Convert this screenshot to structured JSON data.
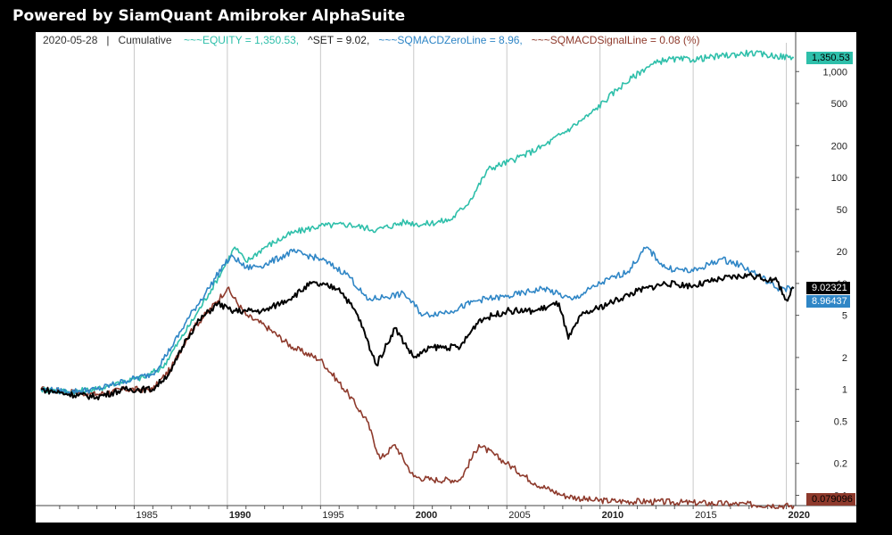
{
  "banner": {
    "title": "Powered by SiamQuant Amibroker AlphaSuite"
  },
  "legend": {
    "date": "2020-05-28",
    "sep": "|",
    "mode": "Cumulative",
    "equity": "~~~EQUITY = 1,350.53,",
    "set": "^SET = 9.02,",
    "zero": "~~~SQMACDZeroLine = 8.96,",
    "signal": "~~~SQMACDSignalLine = 0.08 (%)"
  },
  "tags": {
    "equity": "1,350.53",
    "set": "9.02321",
    "zero": "8.96437",
    "signal": "0.079096"
  },
  "colors": {
    "equity": "#2ebfaa",
    "set": "#000000",
    "zero": "#2f86c6",
    "signal": "#8e3a2c",
    "grid": "#c8c8c8"
  },
  "chart_data": {
    "type": "line",
    "yscale": "log",
    "ylim": [
      0.08,
      1600
    ],
    "xlim": [
      1980.0,
      2020.5
    ],
    "x_ticks": [
      "1985",
      "1990",
      "1995",
      "2000",
      "2005",
      "2010",
      "2015",
      "2020"
    ],
    "y_ticks": [
      "1,000",
      "500",
      "200",
      "100",
      "50",
      "20",
      "10",
      "5",
      "2",
      "1",
      "0.5",
      "0.2",
      "0.1"
    ],
    "series": [
      {
        "name": "~~~EQUITY",
        "key": "equity",
        "x": [
          1980.0,
          1981.5,
          1983.0,
          1984.0,
          1985.5,
          1986.5,
          1987.5,
          1988.3,
          1989.0,
          1989.8,
          1990.4,
          1991.0,
          1992.0,
          1993.5,
          1995.0,
          1996.5,
          1998.0,
          1999.5,
          2000.5,
          2002.0,
          2003.0,
          2004.0,
          2005.5,
          2007.0,
          2008.5,
          2009.5,
          2011.0,
          2012.5,
          2013.5,
          2015.0,
          2016.5,
          2018.0,
          2019.5,
          2020.4
        ],
        "y": [
          1.0,
          0.95,
          1.0,
          1.15,
          1.3,
          1.6,
          3.0,
          5.0,
          8.0,
          14.0,
          22.0,
          16.0,
          22.0,
          30.0,
          35.0,
          36.0,
          32.0,
          38.0,
          36.0,
          40.0,
          60.0,
          120.0,
          150.0,
          200.0,
          300.0,
          400.0,
          700.0,
          1100.0,
          1300.0,
          1300.0,
          1400.0,
          1500.0,
          1400.0,
          1350.53
        ]
      },
      {
        "name": "^SET",
        "key": "set",
        "x": [
          1980.0,
          1981.5,
          1983.0,
          1984.5,
          1986.0,
          1987.0,
          1987.8,
          1988.5,
          1989.5,
          1990.2,
          1991.0,
          1992.0,
          1993.5,
          1994.5,
          1996.0,
          1997.0,
          1998.0,
          1999.0,
          2000.0,
          2001.0,
          2002.5,
          2003.5,
          2005.0,
          2006.5,
          2007.8,
          2008.3,
          2009.0,
          2010.5,
          2012.0,
          2013.5,
          2015.0,
          2016.5,
          2018.0,
          2019.5,
          2020.0,
          2020.4
        ],
        "y": [
          1.0,
          0.9,
          0.85,
          1.0,
          1.0,
          1.5,
          3.0,
          4.5,
          6.5,
          5.5,
          5.5,
          5.5,
          7.5,
          10.0,
          9.0,
          5.0,
          1.7,
          3.8,
          2.0,
          2.5,
          2.5,
          4.5,
          5.5,
          5.5,
          6.5,
          3.0,
          5.0,
          6.5,
          8.5,
          10.0,
          9.5,
          11.0,
          12.0,
          10.5,
          7.0,
          9.02
        ]
      },
      {
        "name": "~~~SQMACDZeroLine",
        "key": "zero",
        "x": [
          1980.0,
          1981.5,
          1983.0,
          1984.5,
          1986.0,
          1987.0,
          1988.0,
          1989.0,
          1989.8,
          1990.3,
          1991.0,
          1992.0,
          1993.5,
          1995.0,
          1996.5,
          1997.5,
          1998.5,
          1999.5,
          2000.5,
          2002.0,
          2003.5,
          2005.0,
          2007.0,
          2008.5,
          2010.0,
          2011.5,
          2012.5,
          2013.5,
          2015.0,
          2016.5,
          2017.5,
          2018.5,
          2019.5,
          2020.4
        ],
        "y": [
          1.0,
          0.95,
          1.0,
          1.2,
          1.4,
          2.5,
          5.0,
          9.0,
          15.0,
          18.0,
          14.0,
          15.0,
          20.0,
          17.0,
          12.0,
          7.0,
          7.5,
          8.0,
          5.0,
          5.5,
          7.0,
          7.5,
          9.0,
          7.0,
          10.0,
          13.0,
          22.0,
          14.0,
          13.0,
          17.0,
          15.0,
          12.0,
          9.0,
          8.96
        ]
      },
      {
        "name": "~~~SQMACDSignalLine",
        "key": "signal",
        "x": [
          1980.0,
          1981.5,
          1983.0,
          1984.5,
          1986.0,
          1987.0,
          1988.0,
          1989.0,
          1990.0,
          1991.0,
          1992.0,
          1993.5,
          1995.0,
          1996.5,
          1997.5,
          1998.2,
          1999.0,
          2000.0,
          2001.0,
          2002.5,
          2003.5,
          2005.0,
          2006.5,
          2008.0,
          2009.5,
          2011.0,
          2013.0,
          2015.0,
          2017.0,
          2019.0,
          2020.4
        ],
        "y": [
          1.0,
          0.95,
          0.9,
          1.0,
          1.0,
          1.6,
          3.5,
          5.5,
          9.0,
          5.0,
          4.0,
          2.5,
          1.9,
          0.9,
          0.5,
          0.22,
          0.3,
          0.15,
          0.14,
          0.14,
          0.3,
          0.2,
          0.13,
          0.1,
          0.09,
          0.088,
          0.087,
          0.085,
          0.083,
          0.081,
          0.079
        ]
      }
    ]
  }
}
